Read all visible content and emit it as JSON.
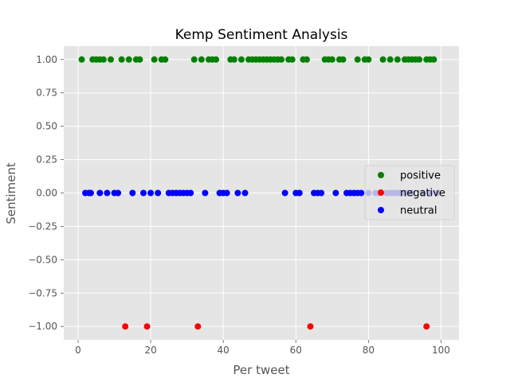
{
  "chart_data": {
    "type": "scatter",
    "title": "Kemp Sentiment Analysis",
    "xlabel": "Per tweet",
    "ylabel": "Sentiment",
    "xlim": [
      -3.95,
      104.95
    ],
    "ylim": [
      -1.1,
      1.1
    ],
    "xticks": [
      0,
      20,
      40,
      60,
      80,
      100
    ],
    "xtick_labels": [
      "0",
      "20",
      "40",
      "60",
      "80",
      "100"
    ],
    "yticks": [
      1.0,
      0.75,
      0.5,
      0.25,
      0.0,
      -0.25,
      -0.5,
      -0.75,
      -1.0
    ],
    "ytick_labels": [
      "1.00",
      "0.75",
      "0.50",
      "0.25",
      "0.00",
      "−0.25",
      "−0.50",
      "−0.75",
      "−1.00"
    ],
    "grid": true,
    "background_color": "#e5e5e5",
    "legend_position": "center-right",
    "series": [
      {
        "name": "positive",
        "color": "#008000",
        "y": 1.0,
        "x": [
          1,
          4,
          5,
          6,
          7,
          9,
          12,
          14,
          16,
          17,
          21,
          23,
          24,
          32,
          34,
          36,
          37,
          38,
          42,
          43,
          45,
          47,
          48,
          49,
          50,
          51,
          52,
          53,
          54,
          55,
          56,
          58,
          59,
          62,
          63,
          68,
          69,
          70,
          72,
          73,
          77,
          79,
          80,
          84,
          86,
          88,
          90,
          91,
          92,
          93,
          94,
          96,
          97,
          98
        ]
      },
      {
        "name": "negative",
        "color": "#ff0000",
        "y": -1.0,
        "x": [
          13,
          19,
          33,
          64,
          96
        ]
      },
      {
        "name": "neutral",
        "color": "#0000ff",
        "y": 0.0,
        "x": [
          2,
          3,
          3.5,
          6,
          8,
          10,
          11,
          15,
          18,
          20,
          22,
          25,
          26,
          27,
          28,
          29,
          30,
          31,
          35,
          39,
          40,
          41,
          44,
          46,
          57,
          60,
          61,
          65,
          66,
          67,
          71,
          74,
          75,
          76,
          77,
          78,
          80,
          82,
          83,
          85,
          86,
          87,
          88,
          89,
          90,
          91,
          92,
          95,
          97,
          99
        ]
      }
    ]
  }
}
